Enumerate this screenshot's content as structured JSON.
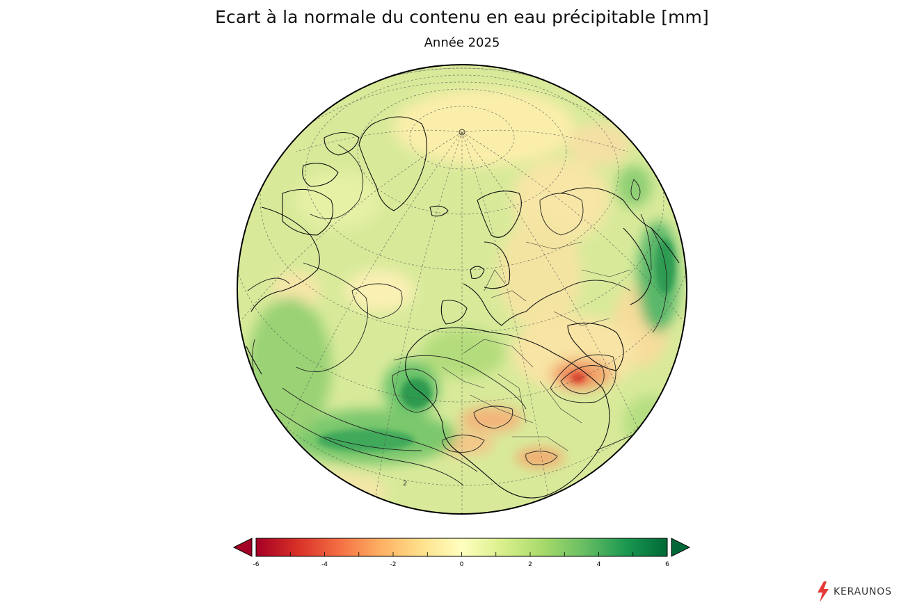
{
  "header": {
    "title": "Ecart à la normale du contenu en eau précipitable [mm]",
    "subtitle": "Année 2025"
  },
  "map": {
    "projection": "orthographic",
    "ocean_base_color": "#d8ea9a"
  },
  "colorbar": {
    "ticks": [
      "-6",
      "-4",
      "-2",
      "0",
      "2",
      "4",
      "6"
    ],
    "colors": [
      "#a50026",
      "#d73027",
      "#f46d43",
      "#fdae61",
      "#fee08b",
      "#ffffbf",
      "#d9ef8b",
      "#a6d96a",
      "#66bd63",
      "#1a9850",
      "#006837"
    ],
    "under_color": "#a50026",
    "over_color": "#006837"
  },
  "brand": {
    "name": "KERAUNOS",
    "accent": "#e53935"
  },
  "contour_label": "2"
}
